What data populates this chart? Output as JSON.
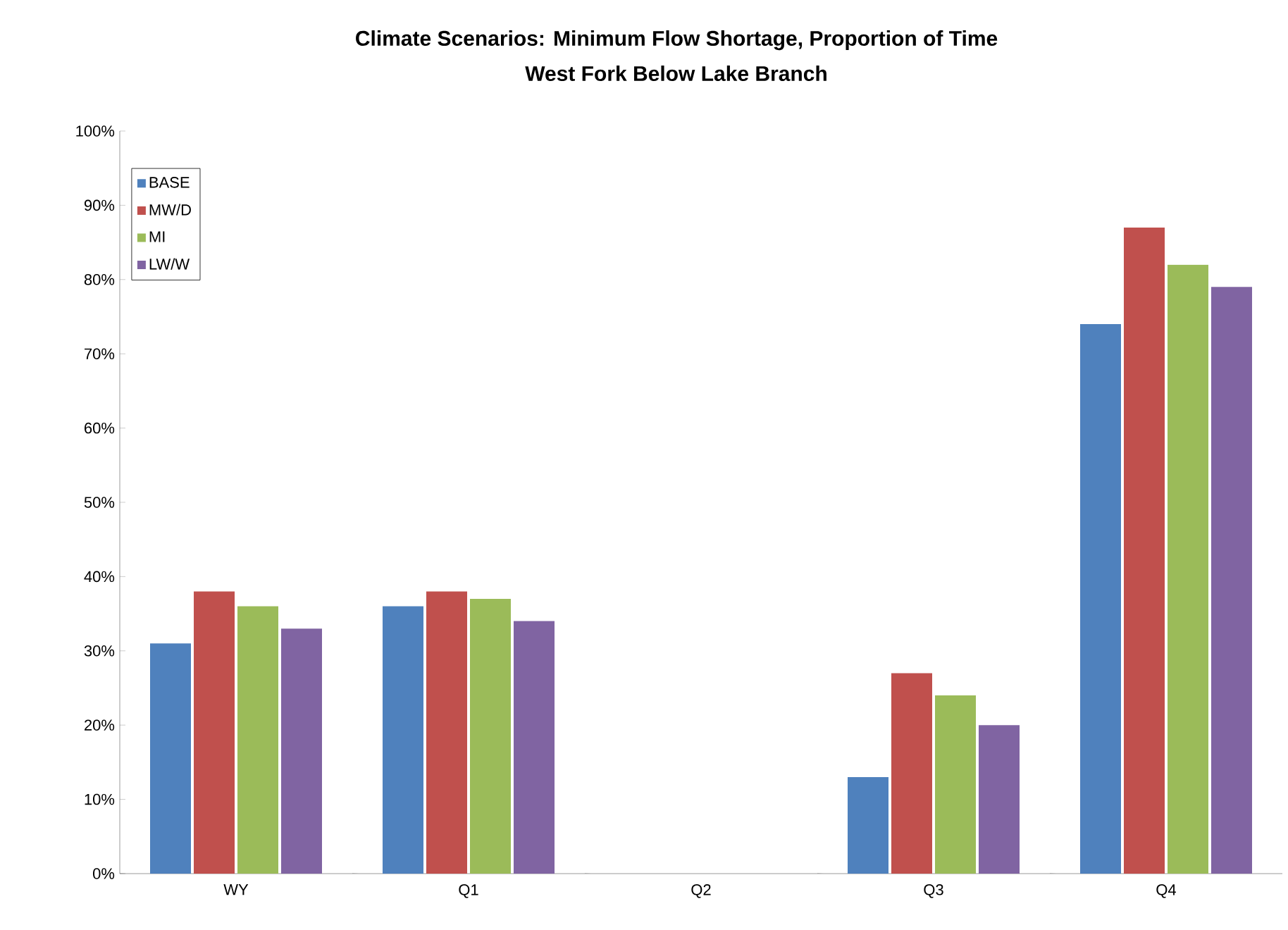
{
  "chart_data": {
    "type": "bar",
    "title": "Climate Scenarios:  Minimum Flow Shortage, Proportion of Time",
    "subtitle": "West Fork Below Lake Branch",
    "categories": [
      "WY",
      "Q1",
      "Q2",
      "Q3",
      "Q4"
    ],
    "series": [
      {
        "name": "BASE",
        "color": "#4f81bd",
        "values": [
          31,
          36,
          0,
          13,
          74
        ]
      },
      {
        "name": "MW/D",
        "color": "#c0504d",
        "values": [
          38,
          38,
          0,
          27,
          87
        ]
      },
      {
        "name": "MI",
        "color": "#9bbb59",
        "values": [
          36,
          37,
          0,
          24,
          82
        ]
      },
      {
        "name": "LW/W",
        "color": "#8064a2",
        "values": [
          33,
          34,
          0,
          20,
          79
        ]
      }
    ],
    "ylim": [
      0,
      100
    ],
    "yticks": [
      {
        "value": 0,
        "label": "0%"
      },
      {
        "value": 10,
        "label": "10%"
      },
      {
        "value": 20,
        "label": "20%"
      },
      {
        "value": 30,
        "label": "30%"
      },
      {
        "value": 40,
        "label": "40%"
      },
      {
        "value": 50,
        "label": "50%"
      },
      {
        "value": 60,
        "label": "60%"
      },
      {
        "value": 70,
        "label": "70%"
      },
      {
        "value": 80,
        "label": "80%"
      },
      {
        "value": 90,
        "label": "90%"
      },
      {
        "value": 100,
        "label": "100%"
      }
    ],
    "grid": false,
    "legend": "top left"
  }
}
